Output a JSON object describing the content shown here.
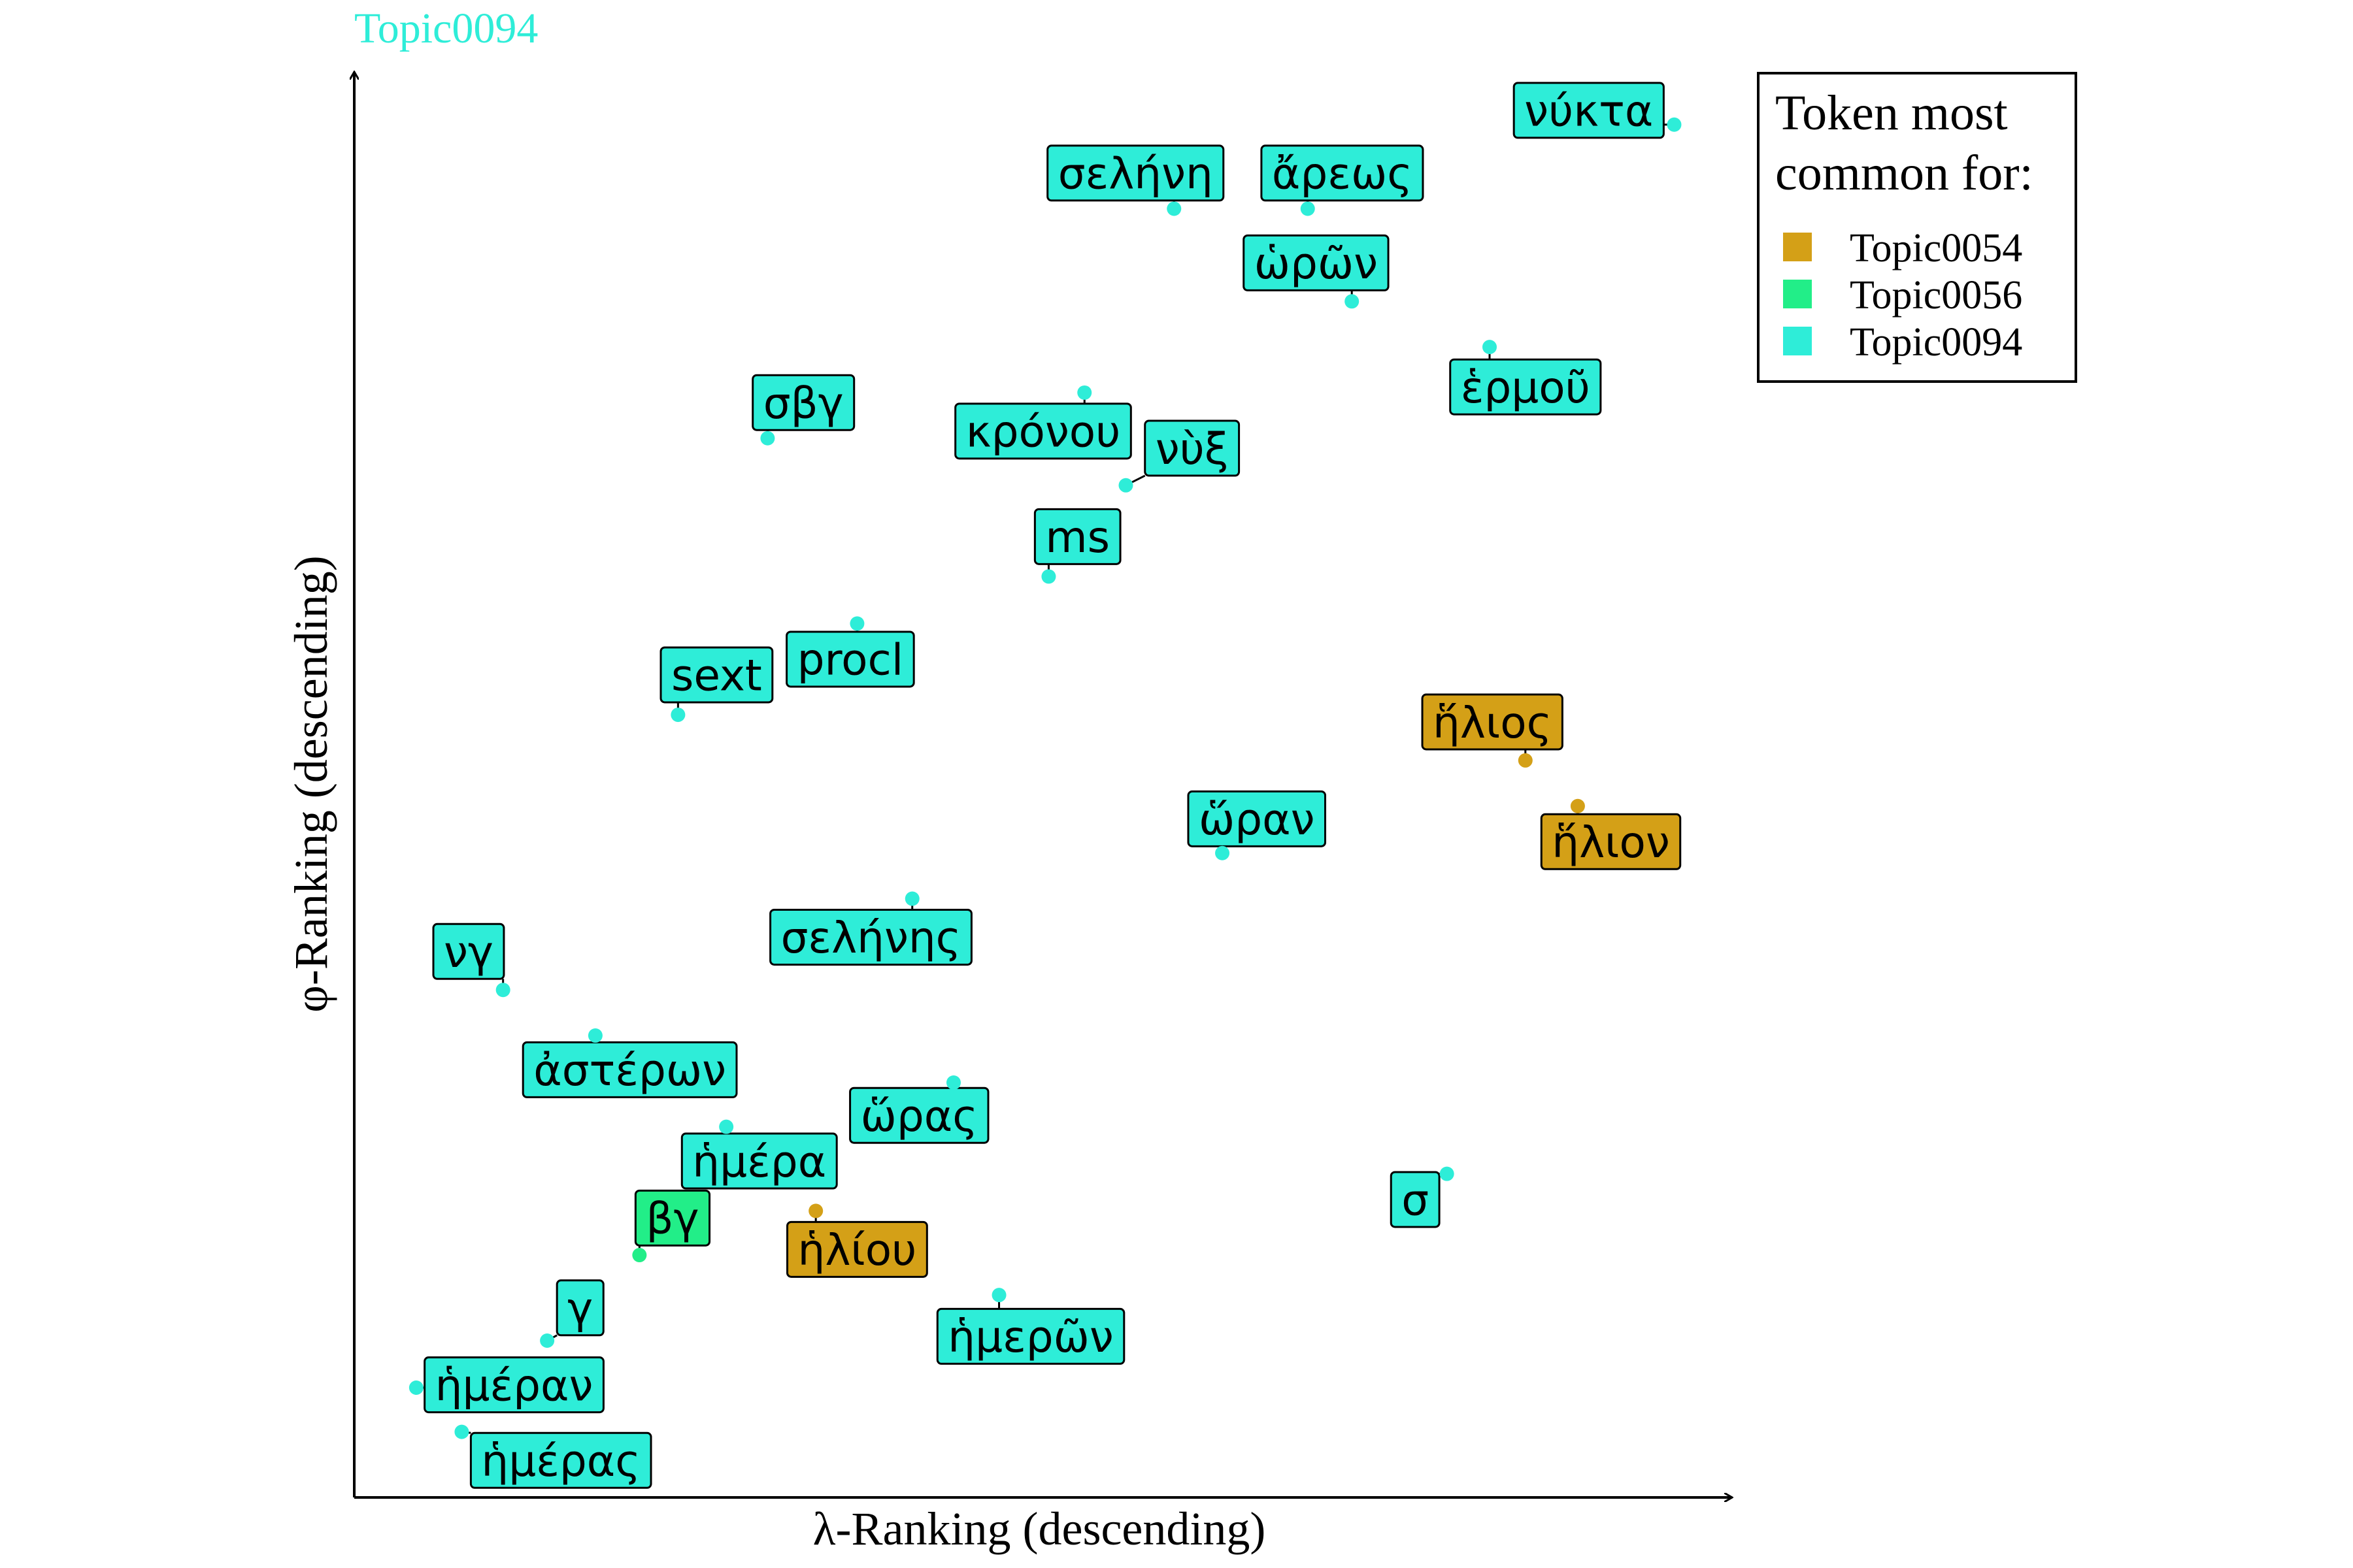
{
  "chart_data": {
    "type": "scatter",
    "title": "Topic0094",
    "xlabel": "λ-Ranking (descending)",
    "ylabel": "φ-Ranking (descending)",
    "xlim": [
      0,
      100
    ],
    "ylim": [
      0,
      100
    ],
    "grid": false,
    "legend": {
      "title_lines": [
        "Token most",
        "common for:"
      ],
      "position": "top-right",
      "entries": [
        {
          "name": "Topic0054",
          "color": "#D4A017"
        },
        {
          "name": "Topic0056",
          "color": "#22EE88"
        },
        {
          "name": "Topic0094",
          "color": "#2EEDD8"
        }
      ]
    },
    "colors": {
      "Topic0054": "#D4A017",
      "Topic0056": "#22EE88",
      "Topic0094": "#2EEDD8",
      "title": "#2EEDD8"
    },
    "points": [
      {
        "label": "νύκτα",
        "topic": "Topic0094",
        "x": 95.8,
        "y": 96.3,
        "lx": 89.6,
        "ly": 97.3
      },
      {
        "label": "σελήνη",
        "topic": "Topic0094",
        "x": 59.5,
        "y": 90.4,
        "lx": 56.7,
        "ly": 92.9
      },
      {
        "label": "ἄρεως",
        "topic": "Topic0094",
        "x": 69.2,
        "y": 90.4,
        "lx": 71.7,
        "ly": 92.9
      },
      {
        "label": "ὡρῶν",
        "topic": "Topic0094",
        "x": 72.4,
        "y": 83.9,
        "lx": 69.8,
        "ly": 86.6
      },
      {
        "label": "ἑρμοῦ",
        "topic": "Topic0094",
        "x": 82.4,
        "y": 80.7,
        "lx": 85.0,
        "ly": 77.9
      },
      {
        "label": "σβγ",
        "topic": "Topic0094",
        "x": 30.0,
        "y": 74.3,
        "lx": 32.6,
        "ly": 76.8
      },
      {
        "label": "κρόνου",
        "topic": "Topic0094",
        "x": 53.0,
        "y": 77.5,
        "lx": 50.0,
        "ly": 74.8
      },
      {
        "label": "νὺξ",
        "topic": "Topic0094",
        "x": 56.0,
        "y": 71.0,
        "lx": 60.8,
        "ly": 73.6
      },
      {
        "label": "ms",
        "topic": "Topic0094",
        "x": 50.4,
        "y": 64.6,
        "lx": 52.5,
        "ly": 67.4
      },
      {
        "label": "procl",
        "topic": "Topic0094",
        "x": 36.5,
        "y": 61.3,
        "lx": 36.0,
        "ly": 58.8
      },
      {
        "label": "sext",
        "topic": "Topic0094",
        "x": 23.5,
        "y": 54.9,
        "lx": 26.3,
        "ly": 57.7
      },
      {
        "label": "ἥλιος",
        "topic": "Topic0054",
        "x": 85.0,
        "y": 51.7,
        "lx": 82.6,
        "ly": 54.4
      },
      {
        "label": "ἥλιον",
        "topic": "Topic0054",
        "x": 88.8,
        "y": 48.5,
        "lx": 91.2,
        "ly": 46.0
      },
      {
        "label": "ὥραν",
        "topic": "Topic0094",
        "x": 63.0,
        "y": 45.2,
        "lx": 65.5,
        "ly": 47.6
      },
      {
        "label": "σελήνης",
        "topic": "Topic0094",
        "x": 40.5,
        "y": 42.0,
        "lx": 37.5,
        "ly": 39.3
      },
      {
        "label": "νγ",
        "topic": "Topic0094",
        "x": 10.8,
        "y": 35.6,
        "lx": 8.3,
        "ly": 38.3
      },
      {
        "label": "ἀστέρων",
        "topic": "Topic0094",
        "x": 17.5,
        "y": 32.4,
        "lx": 20.0,
        "ly": 30.0
      },
      {
        "label": "ὥρας",
        "topic": "Topic0094",
        "x": 43.5,
        "y": 29.1,
        "lx": 41.0,
        "ly": 26.8
      },
      {
        "label": "ἡμέρα",
        "topic": "Topic0094",
        "x": 27.0,
        "y": 26.0,
        "lx": 29.4,
        "ly": 23.6
      },
      {
        "label": "σ",
        "topic": "Topic0094",
        "x": 79.3,
        "y": 22.7,
        "lx": 77.0,
        "ly": 20.9
      },
      {
        "label": "ἡλίου",
        "topic": "Topic0054",
        "x": 33.5,
        "y": 20.1,
        "lx": 36.5,
        "ly": 17.4
      },
      {
        "label": "βγ",
        "topic": "Topic0056",
        "x": 20.7,
        "y": 17.0,
        "lx": 23.1,
        "ly": 19.6
      },
      {
        "label": "ἡμερῶν",
        "topic": "Topic0094",
        "x": 46.8,
        "y": 14.2,
        "lx": 49.1,
        "ly": 11.3
      },
      {
        "label": "γ",
        "topic": "Topic0094",
        "x": 14.0,
        "y": 11.0,
        "lx": 16.4,
        "ly": 13.3
      },
      {
        "label": "ἡμέραν",
        "topic": "Topic0094",
        "x": 4.5,
        "y": 7.7,
        "lx": 11.6,
        "ly": 7.9
      },
      {
        "label": "ἡμέρας",
        "topic": "Topic0094",
        "x": 7.8,
        "y": 4.6,
        "lx": 15.0,
        "ly": 2.6
      }
    ]
  }
}
